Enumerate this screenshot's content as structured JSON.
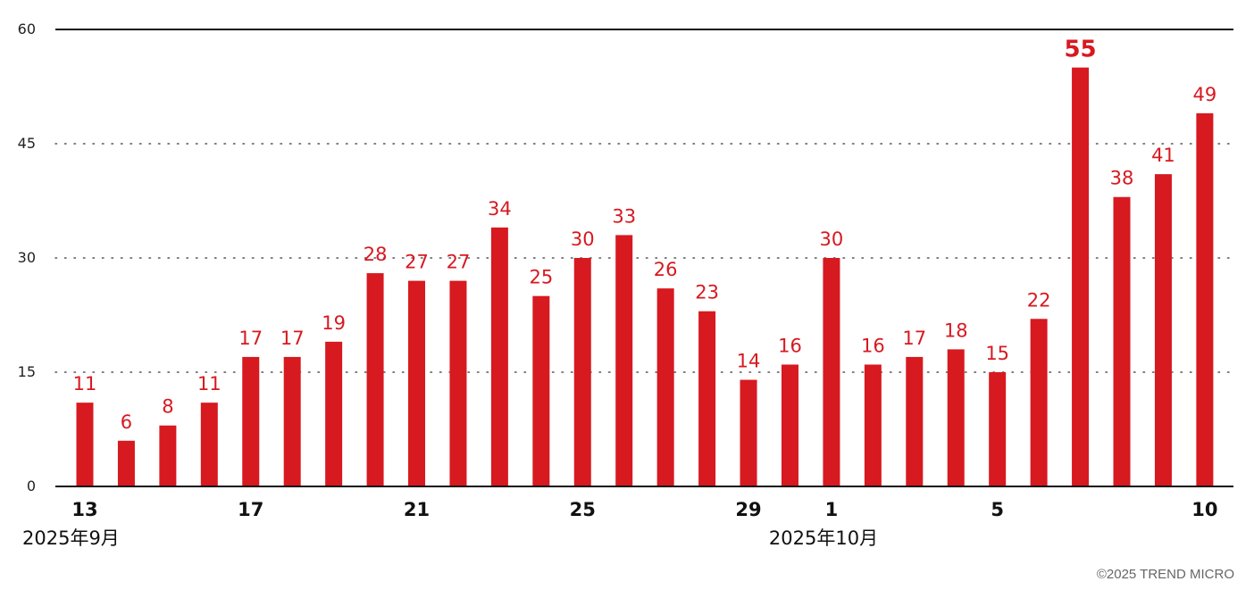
{
  "colors": {
    "bar": "#d71920",
    "label": "#d71920",
    "axis": "#111111",
    "grid": "#555555"
  },
  "copyright": "©2025 TREND MICRO",
  "chart_data": {
    "type": "bar",
    "title": "",
    "xlabel": "",
    "ylabel": "",
    "ylim": [
      0,
      60
    ],
    "yticks": [
      0,
      15,
      30,
      45,
      60
    ],
    "grid": "horizontal dotted",
    "legend": "none",
    "categories": [
      "13",
      "14",
      "15",
      "16",
      "17",
      "18",
      "19",
      "20",
      "21",
      "22",
      "23",
      "24",
      "25",
      "26",
      "27",
      "28",
      "29",
      "30",
      "1",
      "2",
      "3",
      "4",
      "5",
      "6",
      "7",
      "8",
      "9",
      "10"
    ],
    "values": [
      11,
      6,
      8,
      11,
      17,
      17,
      19,
      28,
      27,
      27,
      34,
      25,
      30,
      33,
      26,
      23,
      14,
      16,
      30,
      16,
      17,
      18,
      15,
      22,
      55,
      38,
      41,
      49
    ],
    "visible_tick_labels": [
      "13",
      "17",
      "21",
      "25",
      "29",
      "1",
      "5",
      "10"
    ],
    "month_labels": [
      {
        "category": "13",
        "text": "2025年9月"
      },
      {
        "category": "1",
        "text": "2025年10月"
      }
    ],
    "highlight_max": true
  }
}
